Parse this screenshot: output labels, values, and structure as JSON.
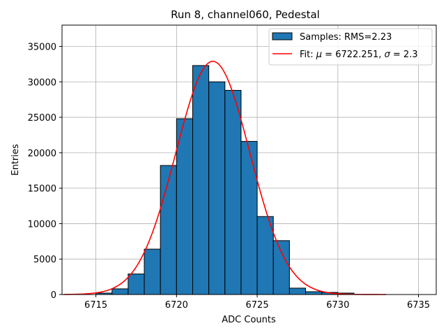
{
  "chart_data": {
    "type": "histogram",
    "title": "Run 8, channel060, Pedestal",
    "xlabel": "ADC Counts",
    "ylabel": "Entries",
    "xlim": [
      6712.9,
      6736.1
    ],
    "ylim": [
      0,
      38000
    ],
    "xticks": [
      6715,
      6720,
      6725,
      6730,
      6735
    ],
    "yticks": [
      0,
      5000,
      10000,
      15000,
      20000,
      25000,
      30000,
      35000
    ],
    "grid": true,
    "legend_position": "top-right",
    "bars": {
      "label": "Samples: RMS=2.23",
      "color": "#1f77b4",
      "edge_color": "#000000",
      "bin_left": [
        6715,
        6716,
        6717,
        6718,
        6719,
        6720,
        6721,
        6722,
        6723,
        6724,
        6725,
        6726,
        6727,
        6728,
        6729,
        6730
      ],
      "bin_width": 1,
      "values": [
        200,
        800,
        2900,
        6400,
        18200,
        24800,
        32300,
        30000,
        28800,
        21600,
        11000,
        7600,
        900,
        400,
        300,
        200
      ]
    },
    "fit": {
      "label_prefix": "Fit: ",
      "label_mu_symbol": "μ",
      "label_mid": " = 6722.251, ",
      "label_sigma_symbol": "σ",
      "label_end": " = 2.3",
      "color": "#ff0000",
      "mu": 6722.251,
      "sigma": 2.3,
      "amplitude": 32900,
      "x_range": [
        6713,
        6733
      ]
    }
  }
}
